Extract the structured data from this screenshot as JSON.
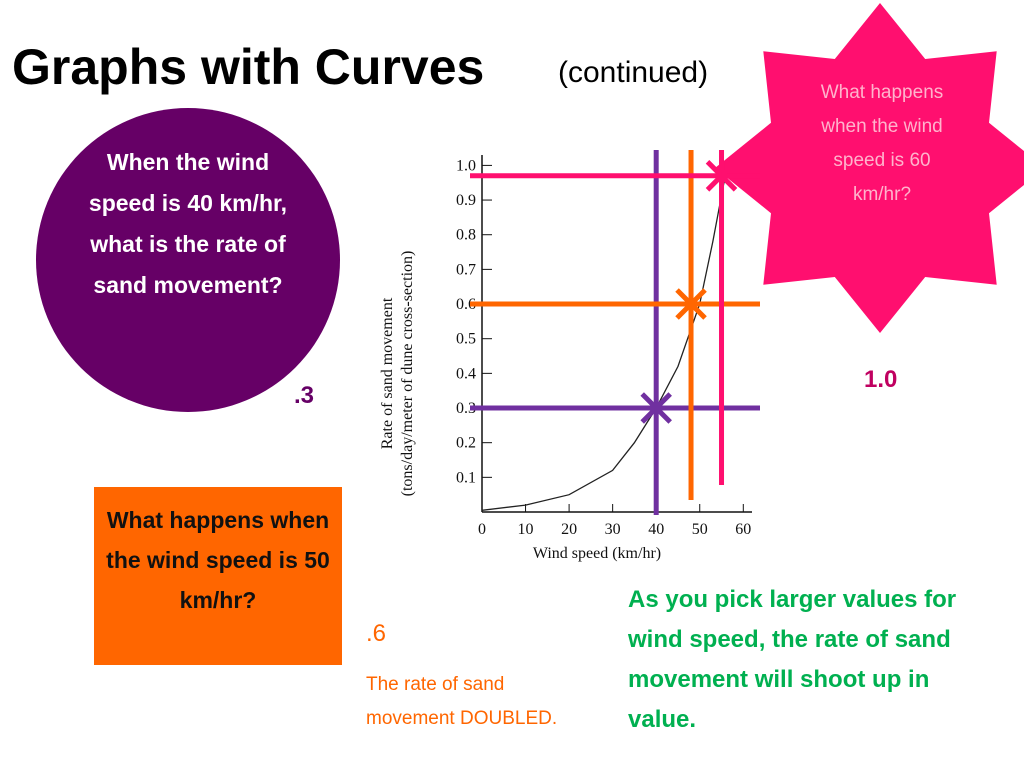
{
  "title": "Graphs with Curves",
  "subtitle": "(continued)",
  "callouts": {
    "circle_question": "When the wind speed is 40 km/hr, what is the rate of sand movement?",
    "circle_answer": ".3",
    "star_question": "What happens when the wind speed is 60 km/hr?",
    "star_answer": "1.0",
    "box_question": "What happens when the wind speed is 50 km/hr?",
    "box_answer": ".6",
    "box_note": "The rate of sand movement DOUBLED.",
    "conclusion": "As you pick larger values for wind speed, the rate of sand movement will shoot up in value."
  },
  "chart_data": {
    "type": "line",
    "x_label": "Wind speed (km/hr)",
    "y_label": [
      "Rate of sand movement",
      "(tons/day/meter of dune cross-section)"
    ],
    "x": [
      0,
      10,
      20,
      30,
      35,
      40,
      45,
      50,
      53,
      56
    ],
    "values": [
      0.005,
      0.02,
      0.05,
      0.12,
      0.2,
      0.3,
      0.42,
      0.6,
      0.78,
      0.98
    ],
    "color": "#222222",
    "xlim": [
      0,
      62
    ],
    "ylim": [
      0,
      1.03
    ],
    "xticks": [
      0,
      10,
      20,
      30,
      40,
      50,
      60
    ],
    "yticks": [
      0.1,
      0.2,
      0.3,
      0.4,
      0.5,
      0.6,
      0.7,
      0.8,
      0.9,
      {
        "value": 1,
        "label": "1.0"
      }
    ],
    "guides": [
      {
        "x": 40,
        "y": 0.3,
        "color": "#7030a0"
      },
      {
        "x": 48,
        "y": 0.6,
        "color": "#ff6600"
      },
      {
        "x": 55,
        "y": 0.97,
        "color": "#ff0f6f"
      }
    ]
  }
}
